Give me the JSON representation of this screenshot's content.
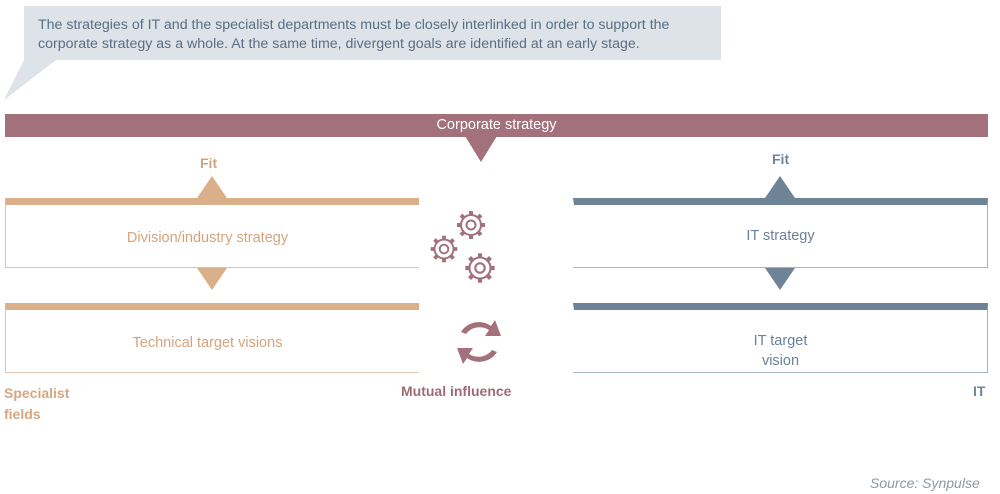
{
  "callout": {
    "text": "The strategies of IT and the specialist departments must be closely interlinked in order to support the corporate strategy as a whole. At the same time, divergent goals are identified at an early stage."
  },
  "corporate_strategy": "Corporate strategy",
  "left": {
    "fit": "Fit",
    "box1": "Division/industry strategy",
    "box2": "Technical target visions",
    "footer": "Specialist fields",
    "color": "#d9b089"
  },
  "center": {
    "footer": "Mutual influence",
    "color": "#a3717c"
  },
  "right": {
    "fit": "Fit",
    "box1": "IT strategy",
    "box2": "IT target vision",
    "footer": "IT",
    "color": "#6e8396"
  },
  "source": "Source: Synpulse"
}
